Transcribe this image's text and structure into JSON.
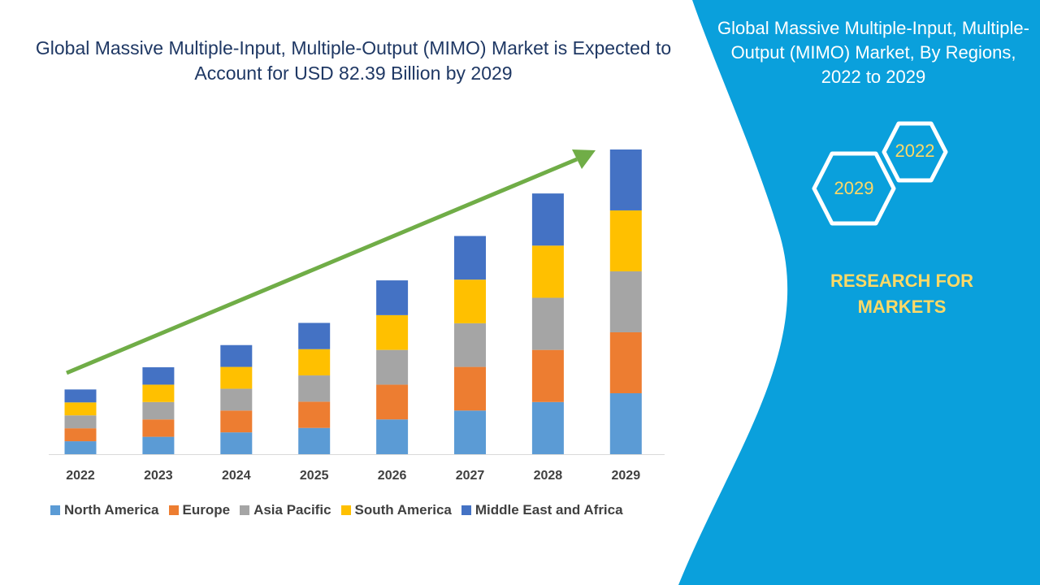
{
  "chart_data": {
    "type": "bar",
    "stacked": true,
    "title": "Global Massive Multiple-Input, Multiple-Output (MIMO) Market is Expected to Account for USD 82.39 Billion by 2029",
    "categories": [
      "2022",
      "2023",
      "2024",
      "2025",
      "2026",
      "2027",
      "2028",
      "2029"
    ],
    "series": [
      {
        "name": "North America",
        "color": "#5b9bd5",
        "values": [
          3.5,
          4.7,
          5.9,
          7.1,
          9.4,
          11.8,
          14.1,
          16.48
        ]
      },
      {
        "name": "Europe",
        "color": "#ed7d31",
        "values": [
          3.5,
          4.7,
          5.9,
          7.1,
          9.4,
          11.8,
          14.1,
          16.48
        ]
      },
      {
        "name": "Asia Pacific",
        "color": "#a5a5a5",
        "values": [
          3.5,
          4.7,
          5.9,
          7.1,
          9.4,
          11.8,
          14.1,
          16.48
        ]
      },
      {
        "name": "South America",
        "color": "#ffc000",
        "values": [
          3.5,
          4.7,
          5.9,
          7.1,
          9.4,
          11.8,
          14.1,
          16.48
        ]
      },
      {
        "name": "Middle East and Africa",
        "color": "#4472c4",
        "values": [
          3.5,
          4.7,
          5.9,
          7.1,
          9.4,
          11.8,
          14.1,
          16.47
        ]
      }
    ],
    "ylim": [
      0,
      82.39
    ],
    "xlabel": "",
    "ylabel": "",
    "grid": false,
    "legend": "bottom",
    "trend_arrow_color": "#70ad47"
  },
  "side_panel": {
    "title": "Global Massive Multiple-Input, Multiple-Output (MIMO) Market, By Regions, 2022 to 2029",
    "hex_start": "2022",
    "hex_end": "2029",
    "brand_line1": "RESEARCH FOR",
    "brand_line2": "MARKETS",
    "color": "#0aa0dc"
  }
}
